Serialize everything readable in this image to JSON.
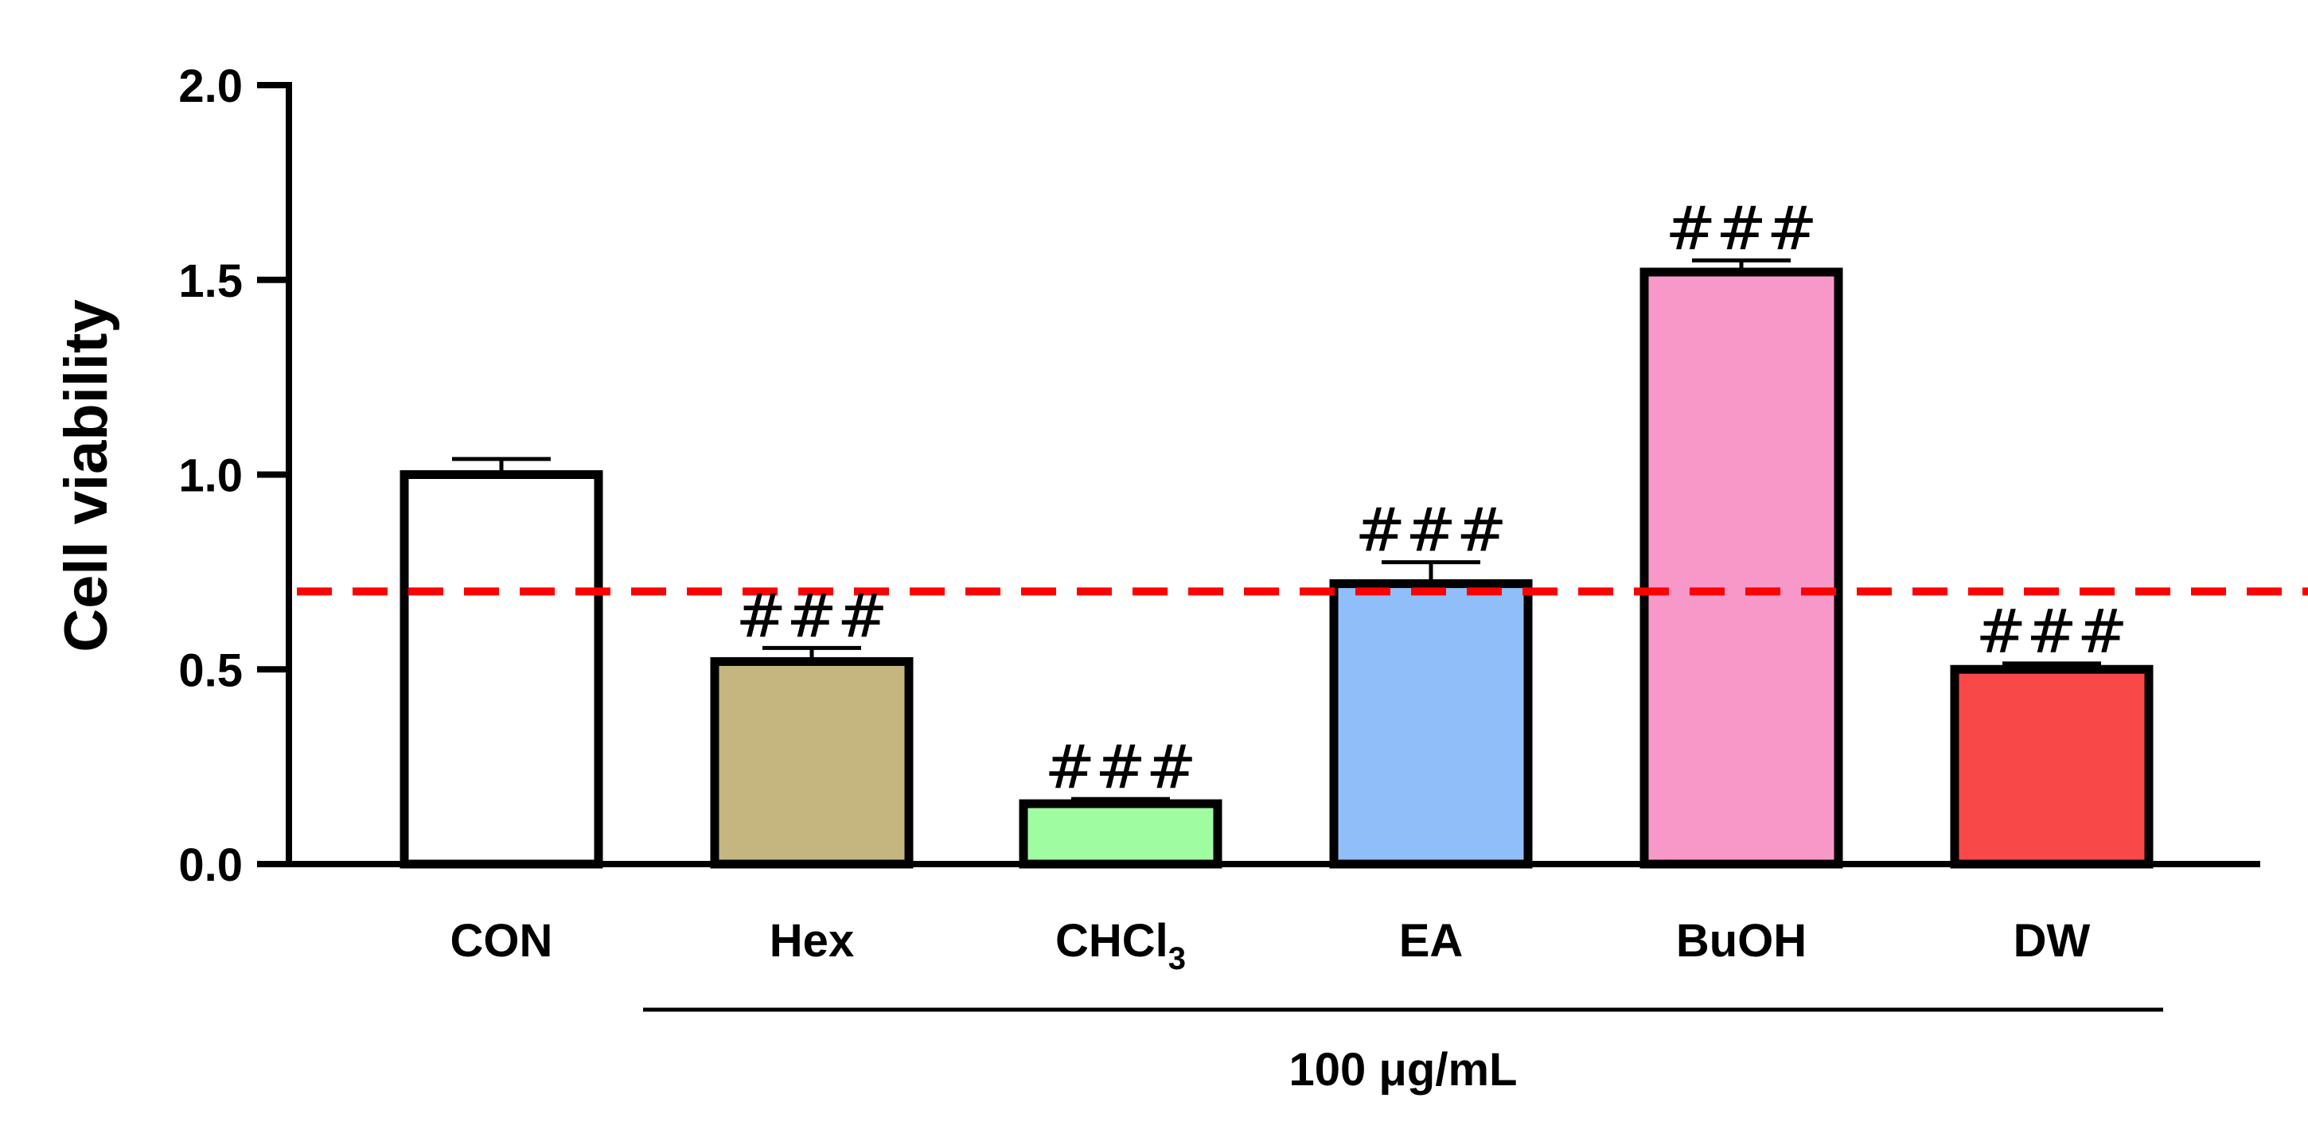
{
  "chart_data": {
    "type": "bar",
    "title": "",
    "ylabel": "Cell viability",
    "xlabel": "",
    "ylim": [
      0,
      2.0
    ],
    "yticks": [
      "0.0",
      "0.5",
      "1.0",
      "1.5",
      "2.0"
    ],
    "ytick_values": [
      0,
      0.5,
      1.0,
      1.5,
      2.0
    ],
    "categories": [
      {
        "label": "CON",
        "sub": ""
      },
      {
        "label": "Hex",
        "sub": ""
      },
      {
        "label": "CHCl",
        "sub": "3"
      },
      {
        "label": "EA",
        "sub": ""
      },
      {
        "label": "BuOH",
        "sub": ""
      },
      {
        "label": "DW",
        "sub": ""
      }
    ],
    "values": [
      1.0,
      0.52,
      0.155,
      0.72,
      1.52,
      0.5
    ],
    "errors": [
      0.04,
      0.035,
      0.012,
      0.055,
      0.03,
      0.015
    ],
    "colors": [
      "#ffffff",
      "#c4b67e",
      "#a0fca0",
      "#90bef8",
      "#f898c8",
      "#f84848"
    ],
    "significance": [
      "",
      "###",
      "###",
      "###",
      "###",
      "###"
    ],
    "reference_line": {
      "value": 0.7,
      "color": "#ff0000",
      "style": "dashed"
    },
    "group_bracket": {
      "label": "100 μg/mL",
      "from": "Hex",
      "to": "DW"
    }
  }
}
